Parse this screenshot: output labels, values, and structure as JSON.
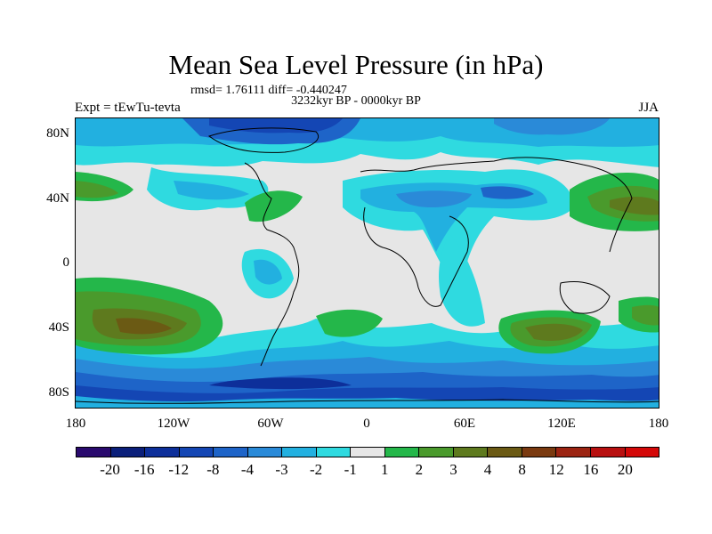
{
  "title": "Mean Sea Level Pressure (in hPa)",
  "stats": "rmsd= 1.76111 diff= -0.440247",
  "period": "3232kyr BP - 0000kyr BP",
  "experiment": "Expt = tEwTu-tevta",
  "season": "JJA",
  "lat_labels": [
    "80N",
    "40N",
    "0",
    "40S",
    "80S"
  ],
  "lon_labels": [
    "180",
    "120W",
    "60W",
    "0",
    "60E",
    "120E",
    "180"
  ],
  "colorbar": {
    "colors": [
      "#2a0a6e",
      "#0b1f7a",
      "#0d2f9a",
      "#1446b4",
      "#1e64c8",
      "#2a8ad8",
      "#22b0e0",
      "#2fdae0",
      "#e6e6e6",
      "#24b74a",
      "#4a9a2c",
      "#5e7a1e",
      "#6b5a14",
      "#7a3a10",
      "#9c2412",
      "#b81010",
      "#d40808"
    ],
    "labels": [
      "-20",
      "-16",
      "-12",
      "-8",
      "-4",
      "-3",
      "-2",
      "-1",
      "1",
      "2",
      "3",
      "4",
      "8",
      "12",
      "16",
      "20"
    ]
  }
}
